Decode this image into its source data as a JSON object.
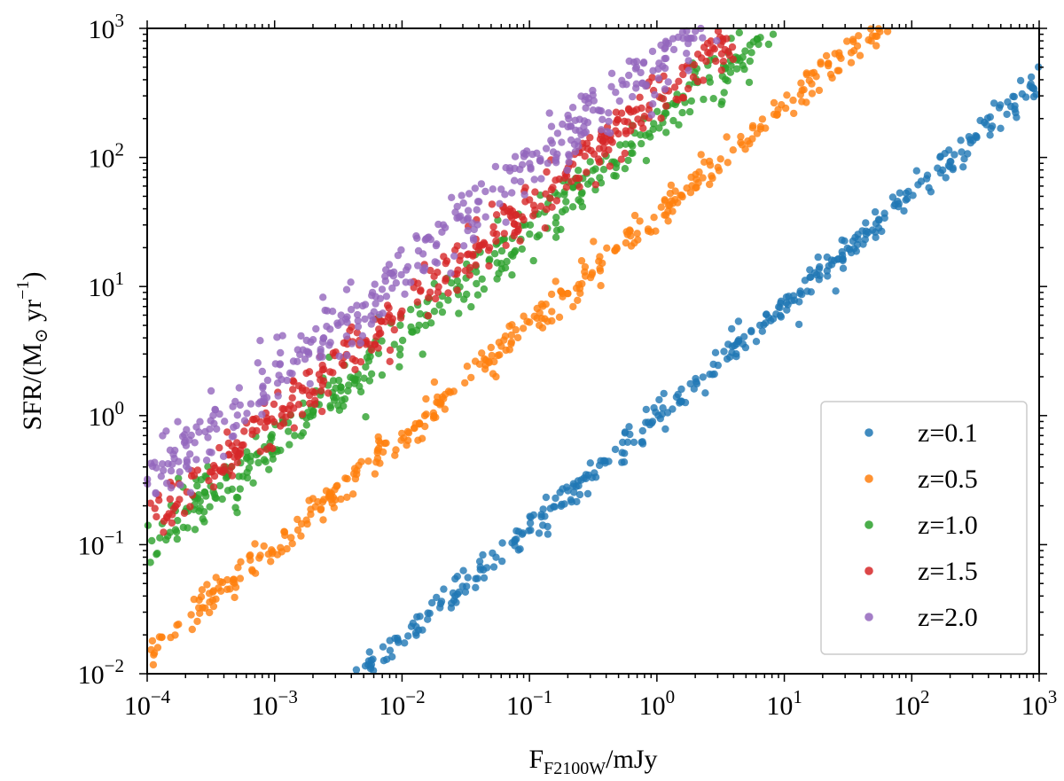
{
  "chart_data": {
    "type": "scatter",
    "title": "",
    "xlabel": {
      "main": "F",
      "sub": "F2100W",
      "unit": "/mJy"
    },
    "ylabel": {
      "pre": "SFR/(M",
      "sub": "⊙",
      "mid": " yr",
      "sup": "−1",
      "post": ")"
    },
    "xscale": "log",
    "yscale": "log",
    "xlim": [
      0.0001,
      1000
    ],
    "ylim": [
      0.01,
      1000
    ],
    "x_ticks": [
      {
        "base": "10",
        "exp": "−4"
      },
      {
        "base": "10",
        "exp": "−3"
      },
      {
        "base": "10",
        "exp": "−2"
      },
      {
        "base": "10",
        "exp": "−1"
      },
      {
        "base": "10",
        "exp": "0"
      },
      {
        "base": "10",
        "exp": "1"
      },
      {
        "base": "10",
        "exp": "2"
      },
      {
        "base": "10",
        "exp": "3"
      }
    ],
    "y_ticks": [
      {
        "base": "10",
        "exp": "−2"
      },
      {
        "base": "10",
        "exp": "−1"
      },
      {
        "base": "10",
        "exp": "0"
      },
      {
        "base": "10",
        "exp": "1"
      },
      {
        "base": "10",
        "exp": "2"
      },
      {
        "base": "10",
        "exp": "3"
      }
    ],
    "legend_position": "lower-right",
    "series": [
      {
        "name": "z=0.1",
        "color": "#1f77b4",
        "points_per_series": 400,
        "log_fit": {
          "x_range": [
            -2.6,
            3.0
          ],
          "log_sfr_at_1mJy": 0.0,
          "slope": 0.86
        },
        "scatter_dex": 0.06
      },
      {
        "name": "z=0.5",
        "color": "#ff7f0e",
        "points_per_series": 400,
        "log_fit": {
          "x_range": [
            -4.0,
            1.9
          ],
          "log_sfr_at_1mJy": 1.55,
          "slope": 0.85
        },
        "scatter_dex": 0.07
      },
      {
        "name": "z=1.0",
        "color": "#2ca02c",
        "points_per_series": 400,
        "log_fit": {
          "x_range": [
            -4.0,
            1.0
          ],
          "log_sfr_at_1mJy": 2.25,
          "slope": 0.82
        },
        "scatter_dex": 0.1
      },
      {
        "name": "z=1.5",
        "color": "#d62728",
        "points_per_series": 400,
        "log_fit": {
          "x_range": [
            -4.0,
            0.6
          ],
          "log_sfr_at_1mJy": 2.45,
          "slope": 0.82
        },
        "scatter_dex": 0.1
      },
      {
        "name": "z=2.0",
        "color": "#9467bd",
        "points_per_series": 400,
        "log_fit": {
          "x_range": [
            -4.0,
            0.5
          ],
          "log_sfr_at_1mJy": 2.75,
          "slope": 0.82
        },
        "scatter_dex": 0.12
      }
    ]
  }
}
